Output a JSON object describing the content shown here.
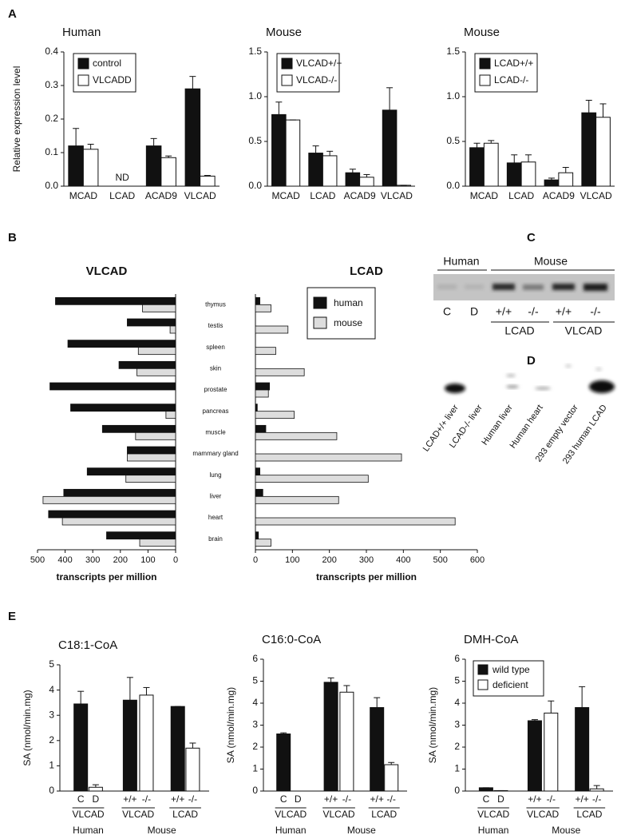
{
  "panel_letters": [
    "A",
    "B",
    "C",
    "D",
    "E"
  ],
  "chart_data": [
    {
      "type": "bar",
      "title": "Human",
      "ylabel": "Relative expression level",
      "categories": [
        "MCAD",
        "LCAD",
        "ACAD9",
        "VLCAD"
      ],
      "series": [
        {
          "name": "control",
          "color": "#111111",
          "values": [
            0.12,
            null,
            0.12,
            0.29
          ],
          "errors": [
            0.052,
            null,
            0.022,
            0.037
          ]
        },
        {
          "name": "VLCADD",
          "color": "#ffffff",
          "values": [
            0.11,
            null,
            0.085,
            0.03
          ],
          "errors": [
            0.015,
            null,
            0.005,
            0.002
          ]
        }
      ],
      "annotations": [
        {
          "text": "ND",
          "x": "LCAD"
        }
      ],
      "ylim": [
        0,
        0.4
      ],
      "yticks": [
        {
          "value": 0,
          "label": "0.0"
        },
        0.1,
        0.2,
        0.3,
        0.4
      ],
      "legend": "upper left"
    },
    {
      "type": "bar",
      "title": "Mouse",
      "categories": [
        "MCAD",
        "LCAD",
        "ACAD9",
        "VLCAD"
      ],
      "series": [
        {
          "name": "VLCAD+/+",
          "color": "#111111",
          "values": [
            0.8,
            0.37,
            0.15,
            0.85
          ],
          "errors": [
            0.14,
            0.08,
            0.04,
            0.25
          ]
        },
        {
          "name": "VLCAD-/-",
          "color": "#ffffff",
          "values": [
            0.74,
            0.34,
            0.1,
            0.01
          ],
          "errors": [
            0,
            0.05,
            0.03,
            0
          ]
        }
      ],
      "ylim": [
        0,
        1.5
      ],
      "yticks": [
        {
          "value": 0,
          "label": "0.0"
        },
        0.5,
        {
          "value": 1,
          "label": "1.0"
        },
        1.5
      ],
      "legend": "upper left"
    },
    {
      "type": "bar",
      "title": "Mouse",
      "categories": [
        "MCAD",
        "LCAD",
        "ACAD9",
        "VLCAD"
      ],
      "series": [
        {
          "name": "LCAD+/+",
          "color": "#111111",
          "values": [
            0.43,
            0.26,
            0.07,
            0.82
          ],
          "errors": [
            0.05,
            0.09,
            0.02,
            0.14
          ]
        },
        {
          "name": "LCAD-/-",
          "color": "#ffffff",
          "values": [
            0.48,
            0.27,
            0.15,
            0.77
          ],
          "errors": [
            0.03,
            0.08,
            0.06,
            0.15
          ]
        }
      ],
      "ylim": [
        0,
        1.5
      ],
      "yticks": [
        {
          "value": 0,
          "label": "0.0"
        },
        0.5,
        {
          "value": 1,
          "label": "1.0"
        },
        1.5
      ],
      "legend": "upper left"
    },
    {
      "type": "butterfly",
      "categories": [
        "thymus",
        "testis",
        "spleen",
        "skin",
        "prostate",
        "pancreas",
        "muscle",
        "mammary gland",
        "lung",
        "liver",
        "heart",
        "brain"
      ],
      "legend": [
        {
          "name": "human",
          "color": "#111111"
        },
        {
          "name": "mouse",
          "color": "#dddddd"
        }
      ],
      "left": {
        "title": "VLCAD",
        "xlabel": "transcripts per million",
        "xlim": [
          500,
          0
        ],
        "xticks": [
          500,
          400,
          300,
          200,
          100,
          0
        ],
        "series": [
          {
            "values": [
              435,
              175,
              390,
              205,
              455,
              380,
              265,
              175,
              320,
              405,
              460,
              250
            ]
          },
          {
            "values": [
              120,
              20,
              135,
              140,
              0,
              35,
              145,
              175,
              180,
              480,
              410,
              130
            ]
          }
        ]
      },
      "right": {
        "title": "LCAD",
        "xlabel": "transcripts per million",
        "xlim": [
          0,
          600
        ],
        "xticks": [
          0,
          100,
          200,
          300,
          400,
          500,
          600
        ],
        "series": [
          {
            "values": [
              12,
              0,
              0,
              0,
              38,
              5,
              28,
              0,
              12,
              20,
              0,
              8
            ]
          },
          {
            "values": [
              42,
              88,
              55,
              132,
              35,
              105,
              220,
              395,
              305,
              225,
              540,
              42
            ]
          }
        ]
      }
    },
    {
      "type": "bar",
      "title": "C18:1-CoA",
      "ylabel": "SA (nmol/min.mg)",
      "categories": [
        "C",
        "D",
        "+/+",
        "-/-",
        "+/+",
        "-/-"
      ],
      "groups": [
        "VLCAD",
        "VLCAD",
        "LCAD"
      ],
      "species": [
        "Human",
        "Mouse"
      ],
      "values": [
        3.45,
        0.15,
        3.6,
        3.8,
        3.35,
        1.7
      ],
      "errors": [
        0.5,
        0.1,
        0.9,
        0.3,
        0,
        0.2
      ],
      "colors": [
        "#111111",
        "#ffffff",
        "#111111",
        "#ffffff",
        "#111111",
        "#ffffff"
      ],
      "ylim": [
        0,
        5
      ],
      "yticks": [
        0,
        1,
        2,
        3,
        4,
        5
      ]
    },
    {
      "type": "bar",
      "title": "C16:0-CoA",
      "ylabel": "SA (nmol/min.mg)",
      "categories": [
        "C",
        "D",
        "+/+",
        "-/-",
        "+/+",
        "-/-"
      ],
      "groups": [
        "VLCAD",
        "VLCAD",
        "LCAD"
      ],
      "species": [
        "Human",
        "Mouse"
      ],
      "values": [
        2.6,
        null,
        4.95,
        4.5,
        3.8,
        1.2
      ],
      "errors": [
        0.05,
        null,
        0.2,
        0.3,
        0.45,
        0.1
      ],
      "colors": [
        "#111111",
        "#ffffff",
        "#111111",
        "#ffffff",
        "#111111",
        "#ffffff"
      ],
      "ylim": [
        0,
        6
      ],
      "yticks": [
        0,
        1,
        2,
        3,
        4,
        5,
        6
      ]
    },
    {
      "type": "bar",
      "title": "DMH-CoA",
      "ylabel": "SA (nmol/min.mg)",
      "categories": [
        "C",
        "D",
        "+/+",
        "-/-",
        "+/+",
        "-/-"
      ],
      "groups": [
        "VLCAD",
        "VLCAD",
        "LCAD"
      ],
      "species": [
        "Human",
        "Mouse"
      ],
      "values": [
        0.15,
        0.02,
        3.2,
        3.55,
        3.8,
        0.1
      ],
      "errors": [
        0,
        0,
        0.05,
        0.55,
        0.95,
        0.15
      ],
      "colors": [
        "#111111",
        "#ffffff",
        "#111111",
        "#ffffff",
        "#111111",
        "#ffffff"
      ],
      "legend": [
        {
          "name": "wild type",
          "color": "#111111"
        },
        {
          "name": "deficient",
          "color": "#ffffff"
        }
      ],
      "ylim": [
        0,
        6
      ],
      "yticks": [
        0,
        1,
        2,
        3,
        4,
        5,
        6
      ]
    }
  ],
  "blot_c": {
    "headers": [
      "Human",
      "Mouse"
    ],
    "lanes": [
      "C",
      "D",
      "+/+",
      "-/-",
      "+/+",
      "-/-"
    ],
    "groups": [
      "LCAD",
      "VLCAD"
    ]
  },
  "blot_d": {
    "lanes": [
      "LCAD+/+ liver",
      "LCAD-/- liver",
      "Human liver",
      "Human heart",
      "293 empty vector",
      "293 human LCAD"
    ]
  }
}
